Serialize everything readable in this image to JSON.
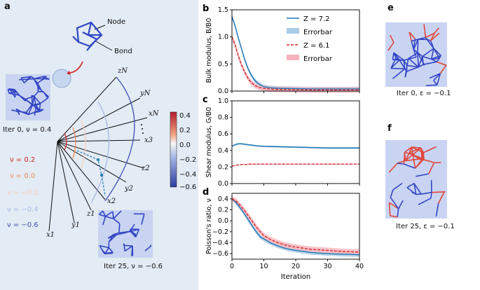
{
  "panels": {
    "a": {
      "label": "a",
      "node_label": "Node",
      "bond_label": "Bond",
      "iter0_caption": "Iter 0, ν = 0.4",
      "iter25_caption": "Iter 25, ν = −0.6",
      "nu_labels": [
        "ν = 0.2",
        "ν = 0.0",
        "ν = −0.2",
        "ν = −0.4",
        "ν = −0.6"
      ],
      "nu_colors": [
        "#d62728",
        "#f08a5d",
        "#f6cfc1",
        "#a9b8e8",
        "#3f4fb5"
      ],
      "axis_labels": [
        "zN",
        "yN",
        "xN",
        "x3",
        "z2",
        "y2",
        "x2",
        "z1",
        "y1",
        "x1"
      ],
      "colorbar": {
        "ticks": [
          "0.4",
          "0.2",
          "0.0",
          "−0.2",
          "−0.4",
          "−0.6"
        ],
        "min": -0.6,
        "max": 0.4
      }
    },
    "e": {
      "label": "e",
      "caption": "Iter 0, ε = −0.1"
    },
    "f": {
      "label": "f",
      "caption": "Iter 25, ε = −0.1"
    }
  },
  "chart_data": [
    {
      "id": "b",
      "label": "b",
      "type": "line",
      "ylabel": "Bulk modulus, B/B0",
      "xlim": [
        0,
        40
      ],
      "ylim": [
        0,
        1.5
      ],
      "yticks": [
        "0.0",
        "0.5",
        "1.0",
        "1.5"
      ],
      "legend": [
        "Z = 7.2",
        "Errorbar",
        "Z = 6.1",
        "Errorbar"
      ],
      "series": [
        {
          "name": "Z = 7.2",
          "color": "#1f77b4",
          "dash": false,
          "x": [
            0,
            1,
            2,
            3,
            4,
            5,
            6,
            7,
            8,
            9,
            10,
            12,
            15,
            20,
            25,
            30,
            35,
            40
          ],
          "y": [
            1.38,
            1.2,
            0.98,
            0.78,
            0.58,
            0.42,
            0.3,
            0.21,
            0.15,
            0.11,
            0.08,
            0.06,
            0.05,
            0.045,
            0.04,
            0.04,
            0.04,
            0.04
          ],
          "err": 0.04,
          "band": "#a9cbe6"
        },
        {
          "name": "Z = 6.1",
          "color": "#d62728",
          "dash": true,
          "x": [
            0,
            1,
            2,
            3,
            4,
            5,
            6,
            7,
            8,
            9,
            10,
            12,
            15,
            20,
            25,
            30,
            35,
            40
          ],
          "y": [
            1.0,
            0.85,
            0.65,
            0.48,
            0.35,
            0.24,
            0.16,
            0.11,
            0.08,
            0.06,
            0.05,
            0.035,
            0.03,
            0.025,
            0.02,
            0.02,
            0.02,
            0.02
          ],
          "err": 0.05,
          "band": "#f6b3bd"
        }
      ]
    },
    {
      "id": "c",
      "label": "c",
      "type": "line",
      "ylabel": "Shear modulus, G/B0",
      "xlim": [
        0,
        40
      ],
      "ylim": [
        0,
        1.0
      ],
      "yticks": [
        "0.0",
        "0.2",
        "0.4",
        "0.6",
        "0.8",
        "1.0"
      ],
      "series": [
        {
          "name": "Z = 7.2",
          "color": "#1f77b4",
          "dash": false,
          "x": [
            0,
            1,
            2,
            3,
            4,
            5,
            6,
            8,
            10,
            15,
            20,
            25,
            30,
            35,
            40
          ],
          "y": [
            0.45,
            0.47,
            0.48,
            0.48,
            0.475,
            0.47,
            0.465,
            0.455,
            0.45,
            0.445,
            0.44,
            0.435,
            0.43,
            0.43,
            0.43
          ],
          "err": 0.01,
          "band": "#a9cbe6"
        },
        {
          "name": "Z = 6.1",
          "color": "#d62728",
          "dash": true,
          "x": [
            0,
            1,
            2,
            3,
            4,
            6,
            8,
            10,
            15,
            20,
            25,
            30,
            35,
            40
          ],
          "y": [
            0.21,
            0.22,
            0.225,
            0.23,
            0.23,
            0.235,
            0.235,
            0.235,
            0.235,
            0.235,
            0.235,
            0.235,
            0.235,
            0.235
          ],
          "err": 0.005,
          "band": "#f6b3bd"
        }
      ]
    },
    {
      "id": "d",
      "label": "d",
      "type": "line",
      "ylabel": "Poisson's ratio, ν",
      "xlabel": "Iteration",
      "xlim": [
        0,
        40
      ],
      "ylim": [
        -0.7,
        0.5
      ],
      "yticks": [
        "0.4",
        "0.2",
        "0.0",
        "−0.2",
        "−0.4",
        "−0.6"
      ],
      "xticks": [
        "0",
        "10",
        "20",
        "30",
        "40"
      ],
      "series": [
        {
          "name": "Z = 7.2",
          "color": "#1f77b4",
          "dash": false,
          "x": [
            0,
            1,
            2,
            3,
            4,
            5,
            6,
            7,
            8,
            9,
            10,
            12,
            14,
            16,
            18,
            20,
            25,
            30,
            35,
            40
          ],
          "y": [
            0.4,
            0.35,
            0.28,
            0.2,
            0.12,
            0.03,
            -0.06,
            -0.15,
            -0.23,
            -0.3,
            -0.33,
            -0.4,
            -0.45,
            -0.49,
            -0.52,
            -0.54,
            -0.58,
            -0.6,
            -0.61,
            -0.62
          ],
          "err": 0.04,
          "band": "#a9cbe6"
        },
        {
          "name": "Z = 6.1",
          "color": "#d62728",
          "dash": true,
          "x": [
            0,
            1,
            2,
            3,
            4,
            5,
            6,
            7,
            8,
            9,
            10,
            12,
            14,
            16,
            18,
            20,
            25,
            30,
            35,
            40
          ],
          "y": [
            0.4,
            0.37,
            0.32,
            0.25,
            0.18,
            0.1,
            0.02,
            -0.06,
            -0.14,
            -0.21,
            -0.27,
            -0.34,
            -0.39,
            -0.43,
            -0.46,
            -0.48,
            -0.52,
            -0.54,
            -0.56,
            -0.57
          ],
          "err": 0.05,
          "band": "#f6b3bd"
        }
      ]
    }
  ]
}
